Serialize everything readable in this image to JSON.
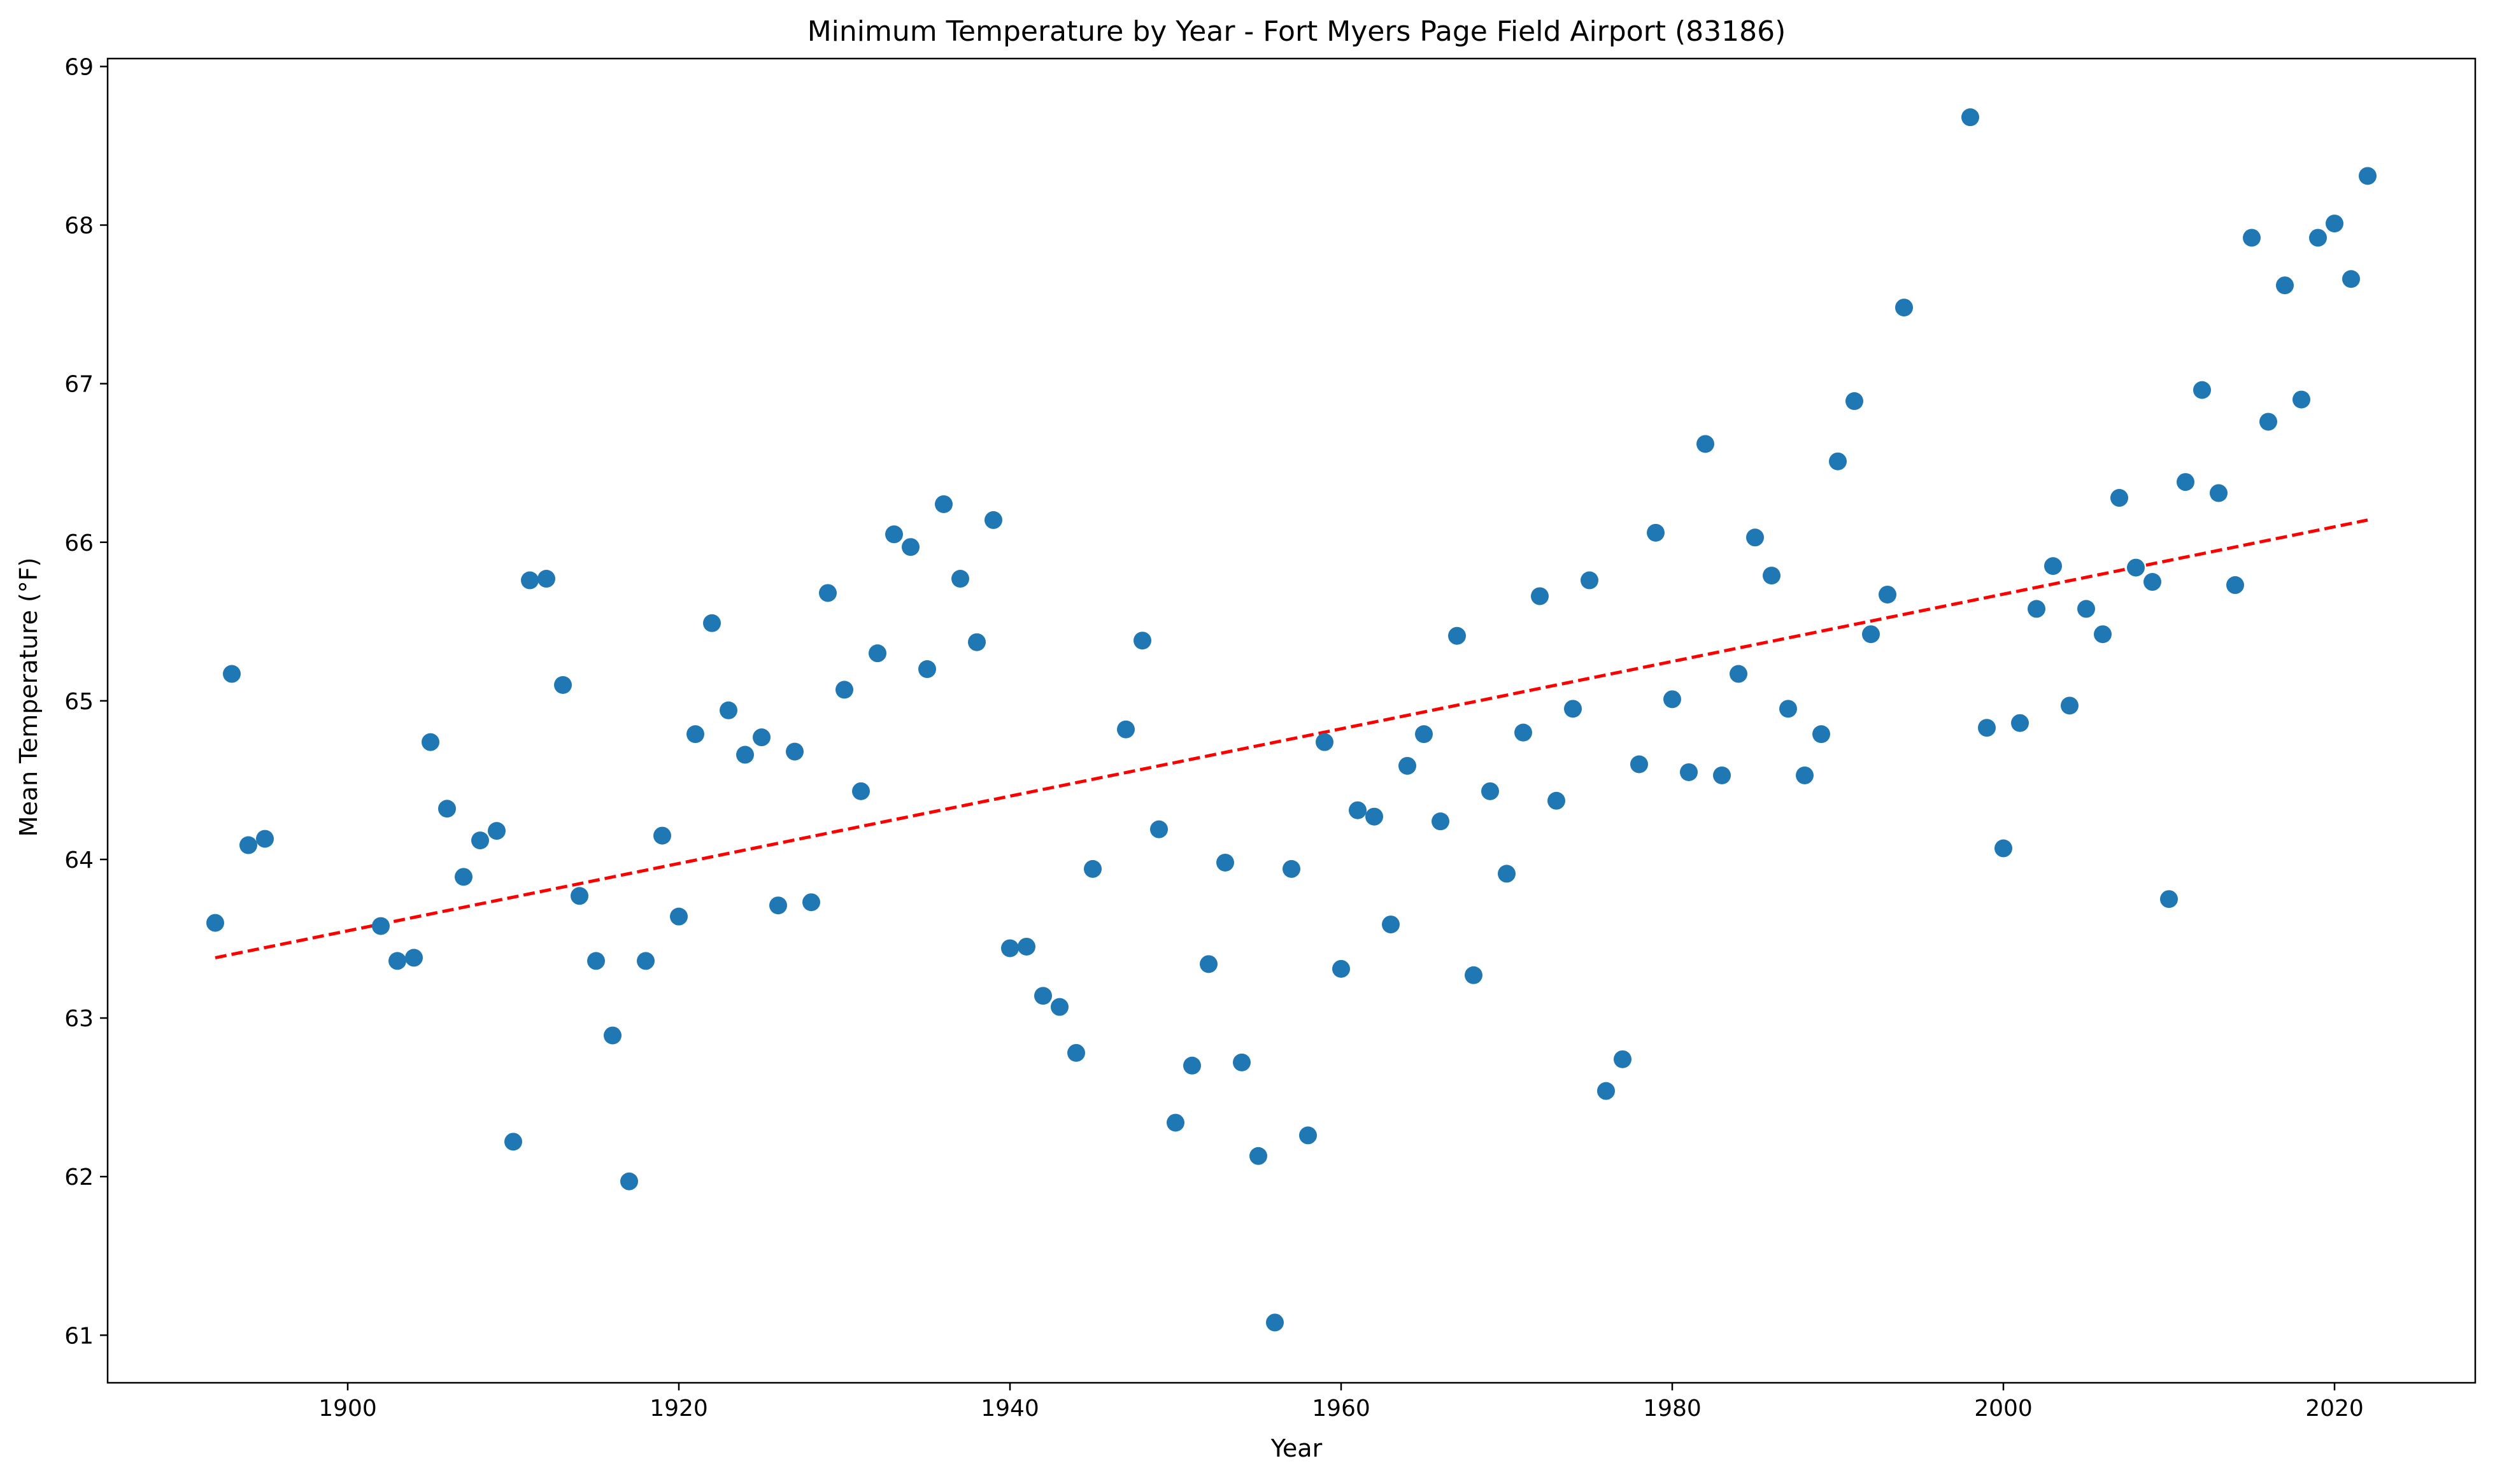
{
  "chart_data": {
    "type": "scatter",
    "title": "Minimum Temperature by Year - Fort Myers Page Field Airport (83186)",
    "xlabel": "Year",
    "ylabel": "Mean Temperature (°F)",
    "xlim": [
      1885.5,
      2028.5
    ],
    "ylim": [
      60.7,
      69.05
    ],
    "xticks": [
      1900,
      1920,
      1940,
      1960,
      1980,
      2000,
      2020
    ],
    "yticks": [
      61,
      62,
      63,
      64,
      65,
      66,
      67,
      68,
      69
    ],
    "grid": false,
    "legend": "none",
    "colors": {
      "points": "#1f77b4",
      "trend": "#ff0000"
    },
    "series": [
      {
        "type": "scatter",
        "x": [
          1892,
          1893,
          1894,
          1895,
          1902,
          1903,
          1904,
          1905,
          1906,
          1907,
          1908,
          1909,
          1910,
          1911,
          1912,
          1913,
          1914,
          1915,
          1916,
          1917,
          1918,
          1919,
          1920,
          1921,
          1922,
          1923,
          1924,
          1925,
          1926,
          1927,
          1928,
          1929,
          1930,
          1931,
          1932,
          1933,
          1934,
          1935,
          1936,
          1937,
          1938,
          1939,
          1940,
          1941,
          1942,
          1943,
          1944,
          1945,
          1947,
          1948,
          1949,
          1950,
          1951,
          1952,
          1953,
          1954,
          1955,
          1956,
          1957,
          1958,
          1959,
          1960,
          1961,
          1962,
          1963,
          1964,
          1965,
          1966,
          1967,
          1968,
          1969,
          1970,
          1971,
          1972,
          1973,
          1974,
          1975,
          1976,
          1977,
          1978,
          1979,
          1980,
          1981,
          1982,
          1983,
          1984,
          1985,
          1986,
          1987,
          1988,
          1989,
          1990,
          1991,
          1992,
          1993,
          1994,
          1998,
          1999,
          2000,
          2001,
          2002,
          2003,
          2004,
          2005,
          2006,
          2007,
          2008,
          2009,
          2010,
          2011,
          2012,
          2013,
          2014,
          2015,
          2016,
          2017,
          2018,
          2019,
          2020,
          2021,
          2022
        ],
        "y": [
          63.6,
          65.17,
          64.09,
          64.13,
          63.58,
          63.36,
          63.38,
          64.74,
          64.32,
          63.89,
          64.12,
          64.18,
          62.22,
          65.76,
          65.77,
          65.1,
          63.77,
          63.36,
          62.89,
          61.97,
          63.36,
          64.15,
          63.64,
          64.79,
          65.49,
          64.94,
          64.66,
          64.77,
          63.71,
          64.68,
          63.73,
          65.68,
          65.07,
          64.43,
          65.3,
          66.05,
          65.97,
          65.2,
          66.24,
          65.77,
          65.37,
          66.14,
          63.44,
          63.45,
          63.14,
          63.07,
          62.78,
          63.94,
          64.82,
          65.38,
          64.19,
          62.34,
          62.7,
          63.34,
          63.98,
          62.72,
          62.13,
          61.08,
          63.94,
          62.26,
          64.74,
          63.31,
          64.31,
          64.27,
          63.59,
          64.59,
          64.79,
          64.24,
          65.41,
          63.27,
          64.43,
          63.91,
          64.8,
          65.66,
          64.37,
          64.95,
          65.76,
          62.54,
          62.74,
          64.6,
          66.06,
          65.01,
          64.55,
          66.62,
          64.53,
          65.17,
          66.03,
          65.79,
          64.95,
          64.53,
          64.79,
          66.51,
          66.89,
          65.42,
          65.67,
          67.48,
          68.68,
          64.83,
          64.07,
          64.86,
          65.58,
          65.85,
          64.97,
          65.58,
          65.42,
          66.28,
          65.84,
          65.75,
          63.75,
          66.38,
          66.96,
          66.31,
          65.73,
          67.92,
          66.76,
          67.62,
          66.9,
          67.92,
          68.01,
          67.66,
          68.31
        ]
      },
      {
        "type": "line",
        "style": "dashed",
        "x": [
          1892,
          2022
        ],
        "y": [
          63.38,
          66.14
        ]
      }
    ]
  }
}
